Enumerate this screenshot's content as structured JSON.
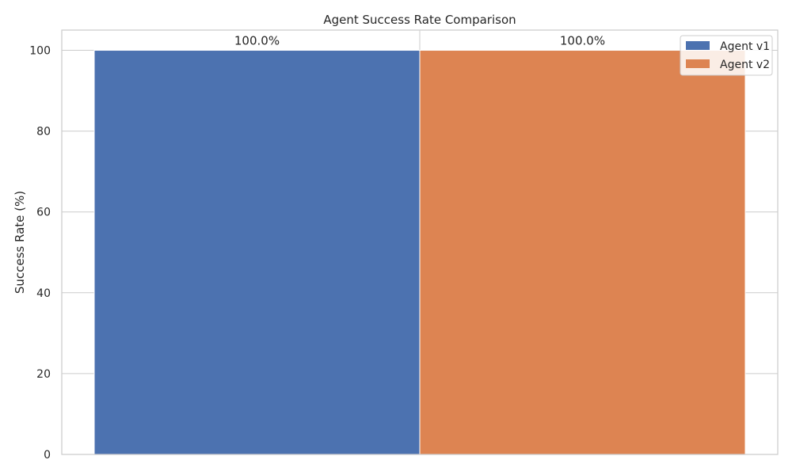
{
  "chart_data": {
    "type": "bar",
    "title": "Agent Success Rate Comparison",
    "xlabel": "",
    "ylabel": "Success Rate (%)",
    "ylim": [
      0,
      105
    ],
    "yticks": [
      0,
      20,
      40,
      60,
      80,
      100
    ],
    "grid": true,
    "legend_position": "top-right",
    "series": [
      {
        "name": "Agent v1",
        "value": 100.0,
        "label": "100.0%",
        "color": "#4c72b0"
      },
      {
        "name": "Agent v2",
        "value": 100.0,
        "label": "100.0%",
        "color": "#dd8452"
      }
    ]
  }
}
